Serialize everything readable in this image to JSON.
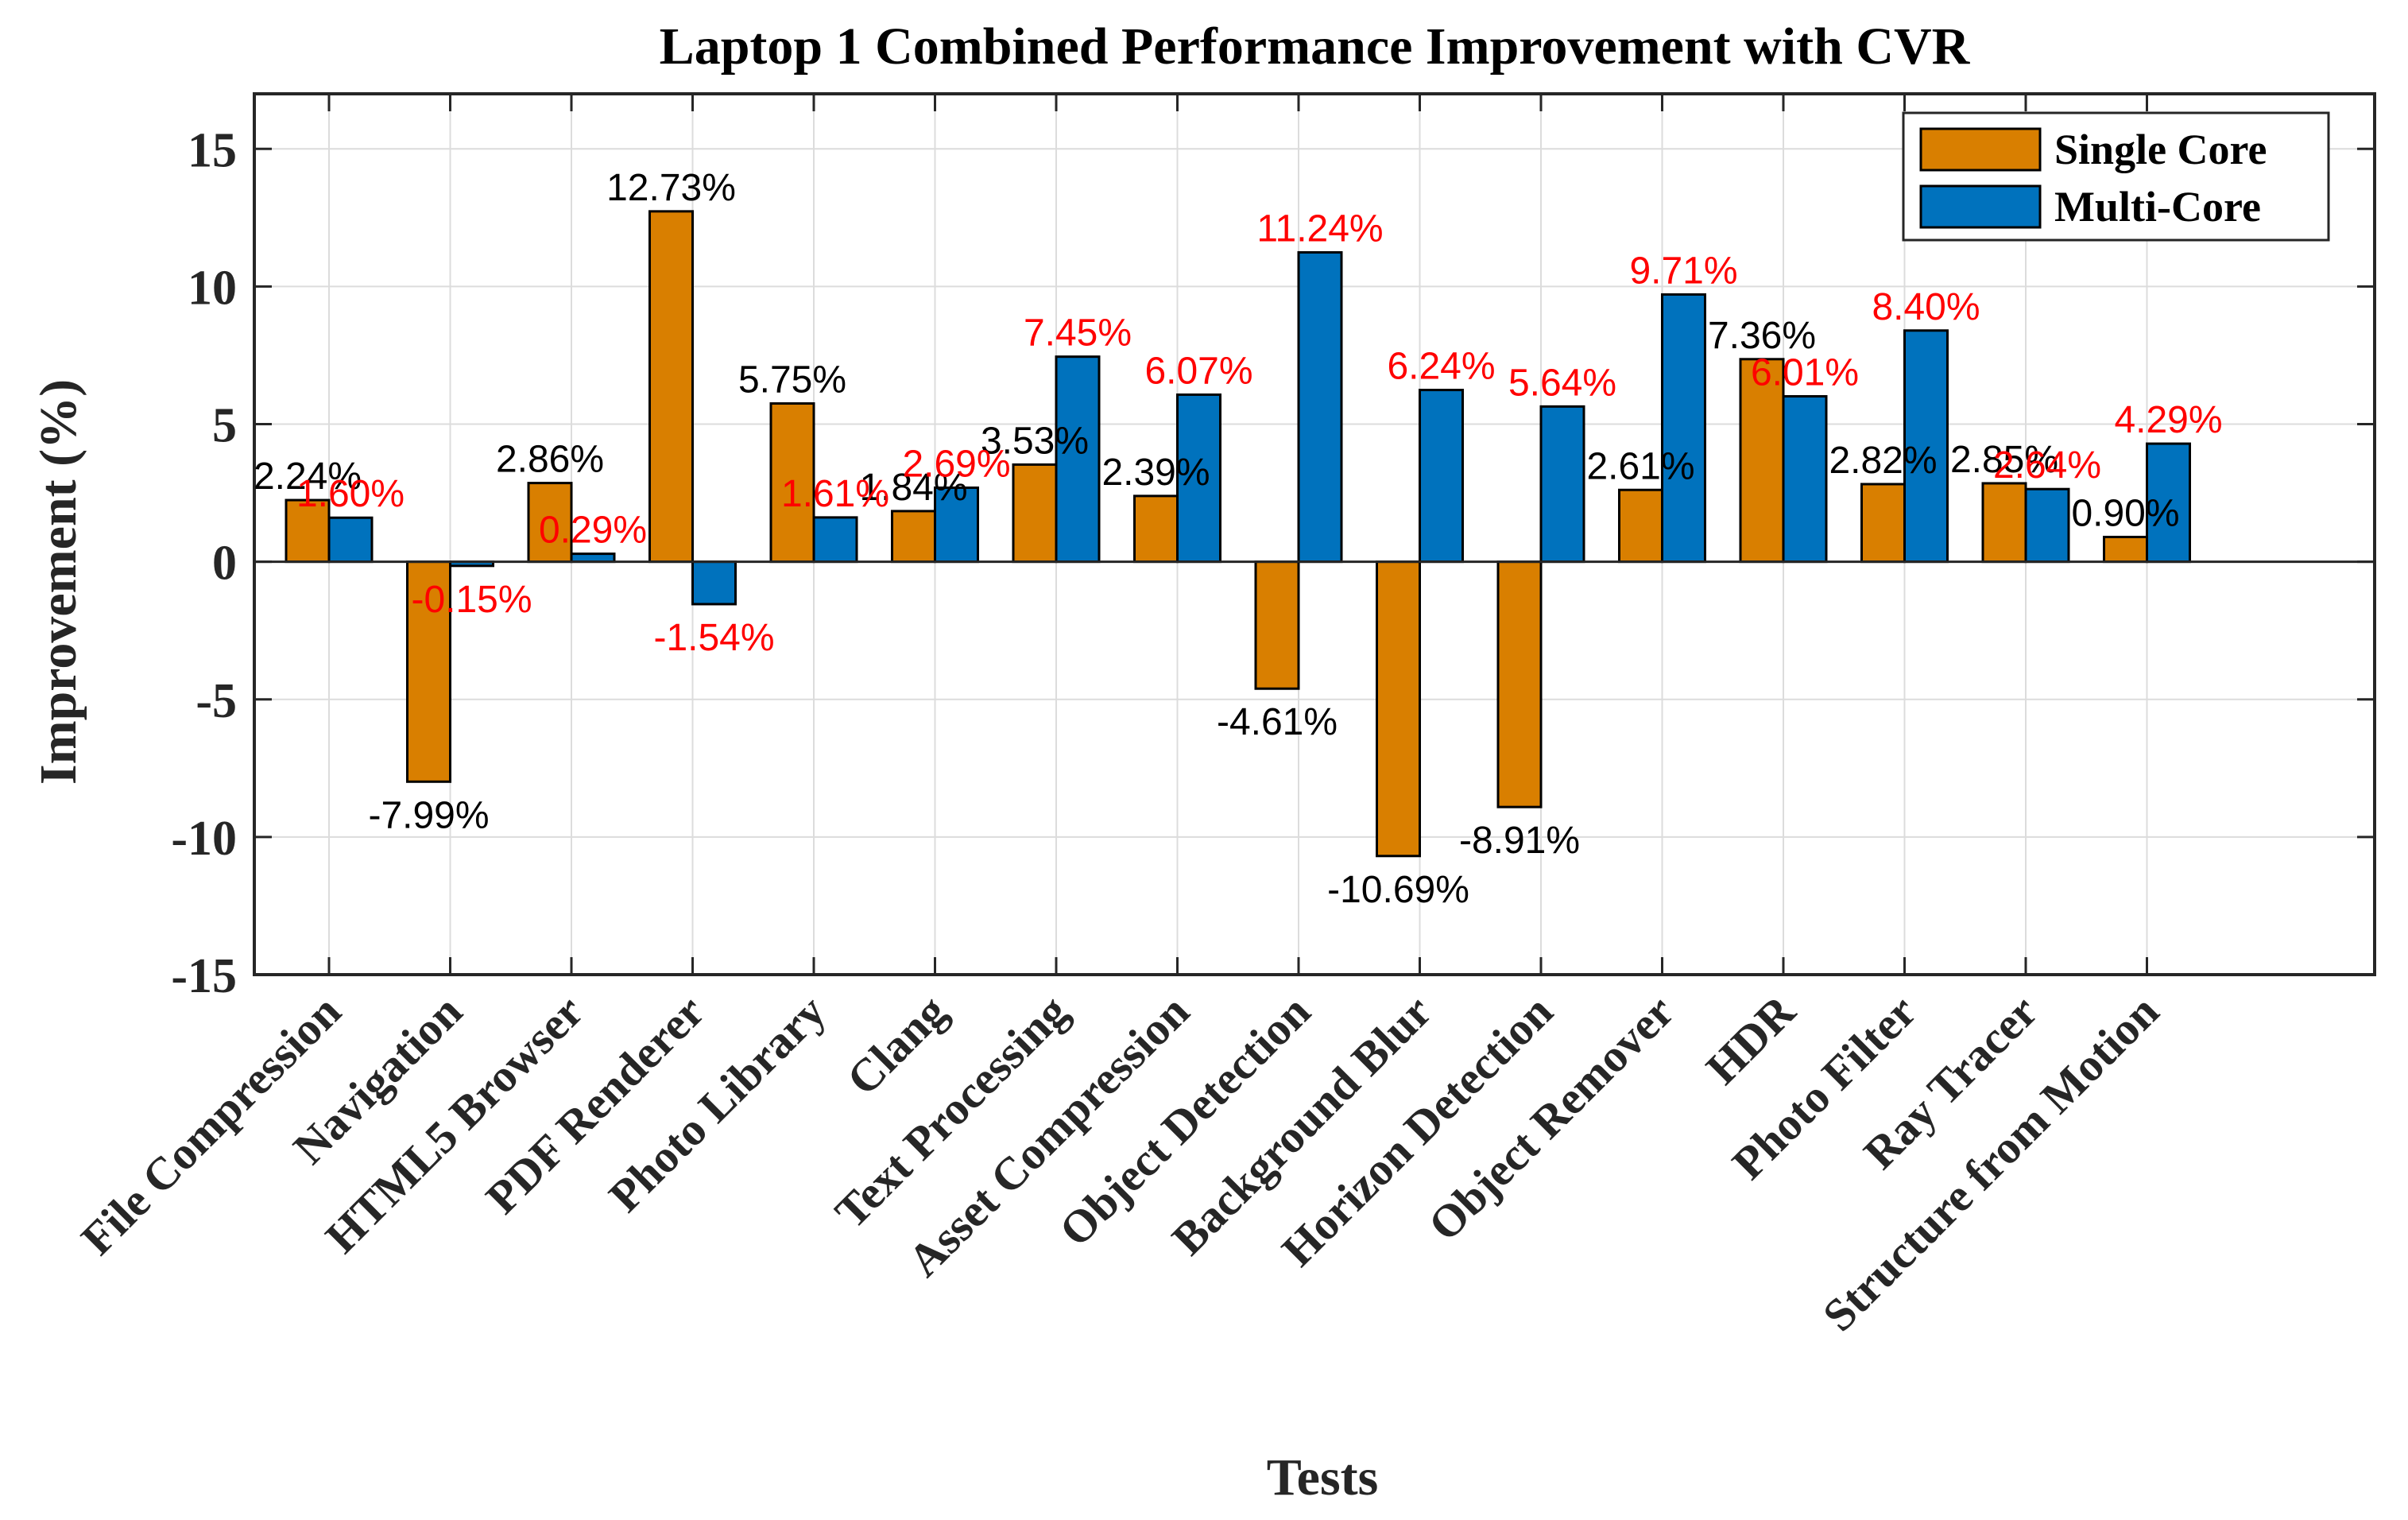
{
  "chart_data": {
    "type": "bar",
    "title": "Laptop 1 Combined Performance Improvement with CVR",
    "xlabel": "Tests",
    "ylabel": "Improvement (%)",
    "ylim": [
      -15,
      17
    ],
    "yticks": [
      -15,
      -10,
      -5,
      0,
      5,
      10,
      15
    ],
    "ytick_labels": [
      "-15",
      "-10",
      "-5",
      "0",
      "5",
      "10",
      "15"
    ],
    "grid": true,
    "legend_position": "top-right",
    "categories": [
      "File Compression",
      "Navigation",
      "HTML5 Browser",
      "PDF Renderer",
      "Photo Library",
      "Clang",
      "Text Processing",
      "Asset Compression",
      "Object Detection",
      "Background Blur",
      "Horizon Detection",
      "Object Remover",
      "HDR",
      "Photo Filter",
      "Ray Tracer",
      "Structure from Motion"
    ],
    "series": [
      {
        "name": "Single Core",
        "color": "#d97f00",
        "label_color": "#000000",
        "values": [
          2.24,
          -7.99,
          2.86,
          12.73,
          5.75,
          1.84,
          3.53,
          2.39,
          -4.61,
          -10.69,
          -8.91,
          2.61,
          7.36,
          2.82,
          2.85,
          0.9
        ],
        "labels": [
          "2.24%",
          "-7.99%",
          "2.86%",
          "12.73%",
          "5.75%",
          "1.84%",
          "3.53%",
          "2.39%",
          "-4.61%",
          "-10.69%",
          "-8.91%",
          "2.61%",
          "7.36%",
          "2.82%",
          "2.85%",
          "0.90%"
        ]
      },
      {
        "name": "Multi-Core",
        "color": "#0072bd",
        "label_color": "#ff0000",
        "values": [
          1.6,
          -0.15,
          0.29,
          -1.54,
          1.61,
          2.69,
          7.45,
          6.07,
          11.24,
          6.24,
          5.64,
          9.71,
          6.01,
          8.4,
          2.64,
          4.29
        ],
        "labels": [
          "1.60%",
          "-0.15%",
          "0.29%",
          "-1.54%",
          "1.61%",
          "2.69%",
          "7.45%",
          "6.07%",
          "11.24%",
          "6.24%",
          "5.64%",
          "9.71%",
          "6.01%",
          "8.40%",
          "2.64%",
          "4.29%"
        ]
      }
    ]
  }
}
